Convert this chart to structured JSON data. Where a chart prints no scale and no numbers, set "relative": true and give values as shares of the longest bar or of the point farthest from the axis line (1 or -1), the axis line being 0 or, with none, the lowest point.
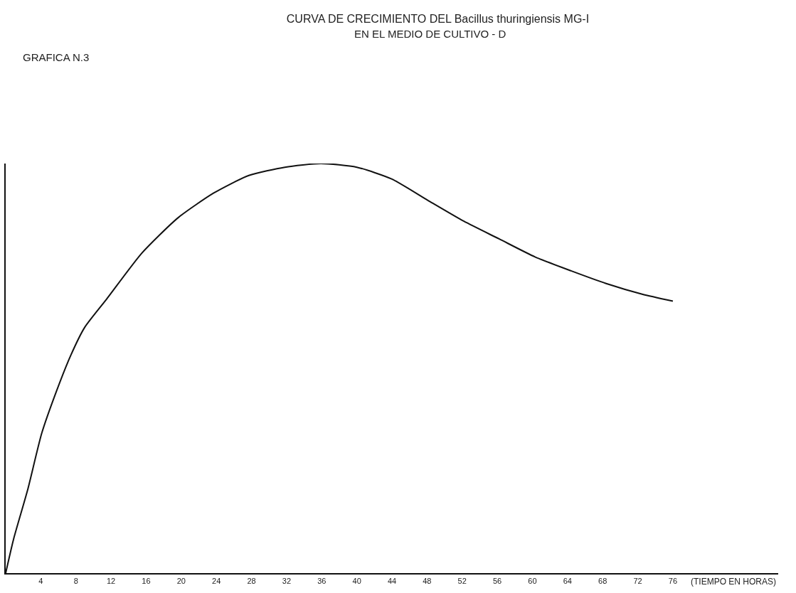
{
  "chart_data": {
    "type": "line",
    "title": "CURVA DE CRECIMIENTO DEL Bacillus thuringiensis MG-I",
    "subtitle": "EN EL MEDIO DE CULTIVO - D",
    "xlabel": "(TIEMPO EN HORAS)",
    "annotations": [
      "GRAFICA N.3"
    ],
    "relative": true,
    "x": [
      0,
      0.9,
      2.5,
      4.1,
      5.8,
      7.4,
      9,
      11.5,
      15.5,
      19.6,
      23.7,
      27.7,
      31.8,
      35.9,
      40,
      44,
      48.1,
      52.2,
      56.2,
      60.3,
      64.4,
      68.4,
      72.5,
      76
    ],
    "series": [
      {
        "color": "#111111",
        "values": [
          0,
          0.083,
          0.203,
          0.341,
          0.445,
          0.531,
          0.6,
          0.669,
          0.781,
          0.867,
          0.928,
          0.971,
          0.991,
          1,
          0.991,
          0.962,
          0.91,
          0.859,
          0.816,
          0.772,
          0.738,
          0.707,
          0.681,
          0.664
        ]
      }
    ],
    "xlim": [
      0,
      88
    ],
    "xticks": [
      4,
      8,
      12,
      16,
      20,
      24,
      28,
      32,
      36,
      40,
      44,
      48,
      52,
      56,
      60,
      64,
      68,
      72,
      76
    ],
    "grid": false,
    "marker": "none",
    "line_style": "solid"
  }
}
